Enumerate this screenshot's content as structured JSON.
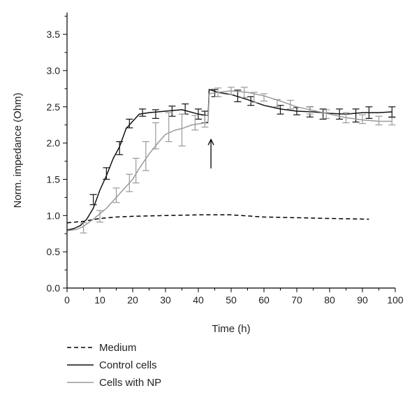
{
  "chart_data": {
    "type": "line",
    "xlabel": "Time (h)",
    "ylabel": "Norm. impedance (Ohm)",
    "xlim": [
      0,
      100
    ],
    "ylim": [
      0,
      3.8
    ],
    "xticks": [
      "0",
      "10",
      "20",
      "30",
      "40",
      "50",
      "60",
      "70",
      "80",
      "90",
      "100"
    ],
    "yticks": [
      "0.0",
      "0.5",
      "1.0",
      "1.5",
      "2.0",
      "2.5",
      "3.0",
      "3.5"
    ],
    "legend_position": "bottom-left",
    "annotation": {
      "symbol": "↑",
      "x": 43,
      "y_from": 1.65,
      "y_to": 2.05
    },
    "series": [
      {
        "name": "Medium",
        "color": "#000000",
        "dash": "6,4",
        "points": [
          [
            0,
            0.9
          ],
          [
            5,
            0.92
          ],
          [
            10,
            0.96
          ],
          [
            15,
            0.98
          ],
          [
            20,
            0.99
          ],
          [
            30,
            1.0
          ],
          [
            40,
            1.01
          ],
          [
            50,
            1.01
          ],
          [
            60,
            0.98
          ],
          [
            70,
            0.97
          ],
          [
            80,
            0.96
          ],
          [
            92,
            0.95
          ]
        ]
      },
      {
        "name": "Control cells",
        "color": "#111111",
        "dash": "",
        "points": [
          [
            0,
            0.8
          ],
          [
            2,
            0.82
          ],
          [
            4,
            0.86
          ],
          [
            6,
            0.95
          ],
          [
            8,
            1.1
          ],
          [
            10,
            1.35
          ],
          [
            12,
            1.55
          ],
          [
            14,
            1.78
          ],
          [
            16,
            1.95
          ],
          [
            18,
            2.2
          ],
          [
            20,
            2.3
          ],
          [
            22,
            2.4
          ],
          [
            25,
            2.42
          ],
          [
            30,
            2.44
          ],
          [
            35,
            2.46
          ],
          [
            40,
            2.4
          ],
          [
            43,
            2.38
          ],
          [
            43.3,
            2.74
          ],
          [
            46,
            2.7
          ],
          [
            50,
            2.67
          ],
          [
            55,
            2.6
          ],
          [
            60,
            2.52
          ],
          [
            65,
            2.47
          ],
          [
            70,
            2.44
          ],
          [
            75,
            2.43
          ],
          [
            80,
            2.41
          ],
          [
            85,
            2.4
          ],
          [
            90,
            2.42
          ],
          [
            95,
            2.42
          ],
          [
            99,
            2.43
          ]
        ],
        "errors": [
          [
            8,
            1.22,
            0.07
          ],
          [
            12,
            1.58,
            0.08
          ],
          [
            16,
            1.93,
            0.09
          ],
          [
            19,
            2.27,
            0.06
          ],
          [
            23,
            2.42,
            0.05
          ],
          [
            27,
            2.4,
            0.06
          ],
          [
            32,
            2.44,
            0.07
          ],
          [
            36,
            2.47,
            0.07
          ],
          [
            40,
            2.4,
            0.07
          ],
          [
            42,
            2.36,
            0.08
          ],
          [
            45,
            2.69,
            0.05
          ],
          [
            52,
            2.65,
            0.08
          ],
          [
            56,
            2.58,
            0.06
          ],
          [
            65,
            2.46,
            0.06
          ],
          [
            70,
            2.44,
            0.05
          ],
          [
            74,
            2.43,
            0.07
          ],
          [
            78,
            2.4,
            0.07
          ],
          [
            83,
            2.4,
            0.07
          ],
          [
            88,
            2.38,
            0.09
          ],
          [
            92,
            2.42,
            0.08
          ],
          [
            99,
            2.43,
            0.07
          ]
        ]
      },
      {
        "name": "Cells with NP",
        "color": "#9a9a9a",
        "dash": "",
        "points": [
          [
            0,
            0.79
          ],
          [
            3,
            0.81
          ],
          [
            5,
            0.85
          ],
          [
            8,
            0.95
          ],
          [
            12,
            1.1
          ],
          [
            15,
            1.25
          ],
          [
            18,
            1.4
          ],
          [
            20,
            1.5
          ],
          [
            22,
            1.65
          ],
          [
            25,
            1.85
          ],
          [
            28,
            2.02
          ],
          [
            30,
            2.12
          ],
          [
            33,
            2.18
          ],
          [
            35,
            2.2
          ],
          [
            38,
            2.25
          ],
          [
            42,
            2.28
          ],
          [
            43,
            2.3
          ],
          [
            43.3,
            2.68
          ],
          [
            46,
            2.7
          ],
          [
            50,
            2.72
          ],
          [
            55,
            2.7
          ],
          [
            60,
            2.65
          ],
          [
            65,
            2.58
          ],
          [
            70,
            2.5
          ],
          [
            75,
            2.45
          ],
          [
            80,
            2.4
          ],
          [
            85,
            2.35
          ],
          [
            90,
            2.32
          ],
          [
            95,
            2.3
          ],
          [
            99,
            2.3
          ]
        ],
        "errors": [
          [
            5,
            0.83,
            0.07
          ],
          [
            10,
            0.99,
            0.08
          ],
          [
            15,
            1.28,
            0.1
          ],
          [
            19,
            1.45,
            0.12
          ],
          [
            21,
            1.62,
            0.17
          ],
          [
            24,
            1.82,
            0.2
          ],
          [
            27,
            2.1,
            0.18
          ],
          [
            31,
            2.22,
            0.2
          ],
          [
            35,
            2.18,
            0.22
          ],
          [
            39,
            2.28,
            0.1
          ],
          [
            42,
            2.3,
            0.08
          ],
          [
            46,
            2.7,
            0.06
          ],
          [
            50,
            2.72,
            0.05
          ],
          [
            54,
            2.7,
            0.07
          ],
          [
            57,
            2.63,
            0.07
          ],
          [
            60,
            2.63,
            0.05
          ],
          [
            64,
            2.55,
            0.05
          ],
          [
            68,
            2.53,
            0.06
          ],
          [
            74,
            2.45,
            0.05
          ],
          [
            79,
            2.4,
            0.06
          ],
          [
            85,
            2.35,
            0.07
          ],
          [
            90,
            2.33,
            0.06
          ],
          [
            95,
            2.31,
            0.06
          ],
          [
            99,
            2.3,
            0.05
          ]
        ]
      }
    ]
  }
}
